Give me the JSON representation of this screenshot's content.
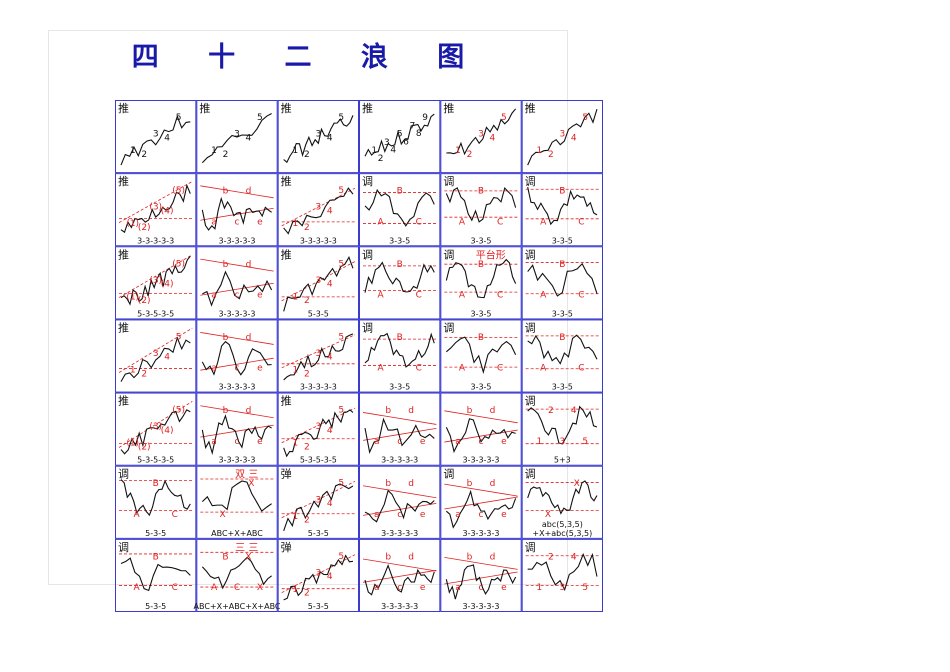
{
  "title": "四 十 二 浪 图",
  "colors": {
    "grid": "#3b3bcf",
    "wave": "#111111",
    "label_red": "#e02020",
    "label_blue": "#2a2ab0"
  },
  "cells": [
    {
      "tag": "推",
      "counts": [
        "1",
        "2",
        "3",
        "4",
        "5"
      ],
      "code": ""
    },
    {
      "tag": "推",
      "counts": [
        "1",
        "2",
        "3",
        "4",
        "5"
      ],
      "code": ""
    },
    {
      "tag": "推",
      "counts": [
        "1",
        "2",
        "3",
        "4",
        "5"
      ],
      "code": ""
    },
    {
      "tag": "推",
      "counts": [
        "1",
        "2",
        "3",
        "4",
        "5",
        "6",
        "7",
        "8",
        "9"
      ],
      "code": ""
    },
    {
      "tag": "推",
      "counts": [
        "1",
        "2",
        "3",
        "4",
        "5"
      ],
      "code": ""
    },
    {
      "tag": "推",
      "counts": [
        "1",
        "2",
        "3",
        "4",
        "5"
      ],
      "code": ""
    },
    {
      "tag": "推",
      "counts": [
        "(1)",
        "(2)",
        "(3)",
        "(4)",
        "(5)"
      ],
      "code": "3-3-3-3-3"
    },
    {
      "tag": "",
      "counts": [
        "a",
        "b",
        "c",
        "d",
        "e"
      ],
      "code": "3-3-3-3-3"
    },
    {
      "tag": "推",
      "counts": [
        "1",
        "2",
        "3",
        "4",
        "5"
      ],
      "code": "3-3-3-3-3"
    },
    {
      "tag": "调",
      "counts": [
        "A",
        "B",
        "C"
      ],
      "code": "3-3-5"
    },
    {
      "tag": "调",
      "counts": [
        "A",
        "B",
        "C"
      ],
      "code": "3-3-5"
    },
    {
      "tag": "调",
      "counts": [
        "A",
        "B",
        "C"
      ],
      "code": "3-3-5"
    },
    {
      "tag": "推",
      "counts": [
        "(1)",
        "(2)",
        "(3)",
        "(4)",
        "(5)"
      ],
      "code": "5-3-5-3-5"
    },
    {
      "tag": "",
      "counts": [
        "a",
        "b",
        "c",
        "d",
        "e"
      ],
      "code": "3-3-3-3-3"
    },
    {
      "tag": "推",
      "counts": [
        "1",
        "2",
        "3",
        "4",
        "5"
      ],
      "code": "5-3-5"
    },
    {
      "tag": "调",
      "counts": [
        "A",
        "B",
        "C"
      ],
      "code": ""
    },
    {
      "tag": "调",
      "counts": [
        "A",
        "B",
        "C"
      ],
      "code": "3-3-5"
    },
    {
      "tag": "调",
      "counts": [
        "A",
        "B",
        "C"
      ],
      "code": "3-3-5"
    },
    {
      "tag": "推",
      "counts": [
        "1",
        "2",
        "3",
        "4",
        "5"
      ],
      "code": ""
    },
    {
      "tag": "",
      "counts": [
        "a",
        "b",
        "c",
        "d",
        "e"
      ],
      "code": "3-3-3-3-3"
    },
    {
      "tag": "",
      "counts": [
        "1",
        "2",
        "3",
        "4",
        "5"
      ],
      "code": "3-3-3-3-3"
    },
    {
      "tag": "调",
      "counts": [
        "A",
        "B",
        "C"
      ],
      "code": "3-3-5"
    },
    {
      "tag": "调",
      "counts": [
        "A",
        "B",
        "C"
      ],
      "code": "3-3-5"
    },
    {
      "tag": "调",
      "counts": [
        "A",
        "B",
        "C"
      ],
      "code": "3-3-5"
    },
    {
      "tag": "推",
      "counts": [
        "(1)",
        "(2)",
        "(3)",
        "(4)",
        "(5)"
      ],
      "code": "5-3-5-3-5"
    },
    {
      "tag": "",
      "counts": [
        "a",
        "b",
        "c",
        "d",
        "e"
      ],
      "code": "3-3-3-3-3"
    },
    {
      "tag": "推",
      "counts": [
        "1",
        "2",
        "3",
        "4",
        "5"
      ],
      "code": "5-3-5-3-5"
    },
    {
      "tag": "",
      "counts": [
        "a",
        "b",
        "c",
        "d",
        "e"
      ],
      "code": "3-3-3-3-3"
    },
    {
      "tag": "",
      "counts": [
        "a",
        "b",
        "c",
        "d",
        "e"
      ],
      "code": "3-3-3-3-3"
    },
    {
      "tag": "调",
      "counts": [
        "1",
        "2",
        "3",
        "4",
        "5"
      ],
      "code": "5+3"
    },
    {
      "tag": "调",
      "counts": [
        "A",
        "B",
        "C"
      ],
      "code": "5-3-5"
    },
    {
      "tag": "",
      "counts": [
        "X",
        "X"
      ],
      "code": "ABC+X+ABC"
    },
    {
      "tag": "弹",
      "counts": [
        "1",
        "2",
        "3",
        "4",
        "5"
      ],
      "code": "5-3-5"
    },
    {
      "tag": "",
      "counts": [
        "a",
        "b",
        "c",
        "d",
        "e"
      ],
      "code": "3-3-3-3-3"
    },
    {
      "tag": "调",
      "counts": [
        "a",
        "b",
        "c",
        "d",
        "e"
      ],
      "code": "3-3-3-3-3"
    },
    {
      "tag": "调",
      "counts": [
        "X",
        "X"
      ],
      "code": "abc(5,3,5)\n+X+abc(5,3,5)"
    },
    {
      "tag": "调",
      "counts": [
        "A",
        "B",
        "C"
      ],
      "code": "5-3-5"
    },
    {
      "tag": "",
      "counts": [
        "A",
        "B",
        "C",
        "X",
        "X"
      ],
      "code": "ABC+X+ABC+X+ABC"
    },
    {
      "tag": "弹",
      "counts": [
        "1",
        "2",
        "3",
        "4",
        "5"
      ],
      "code": "5-3-5"
    },
    {
      "tag": "",
      "counts": [
        "a",
        "b",
        "c",
        "d",
        "e"
      ],
      "code": "3-3-3-3-3"
    },
    {
      "tag": "",
      "counts": [
        "a",
        "b",
        "c",
        "d",
        "e"
      ],
      "code": "3-3-3-3-3"
    },
    {
      "tag": "调",
      "counts": [
        "1",
        "2",
        "3",
        "4",
        "5"
      ],
      "code": ""
    }
  ],
  "decor": {
    "row5_col1": "双 三",
    "row6_col1": "三 三",
    "row2_col4": "平台形"
  }
}
